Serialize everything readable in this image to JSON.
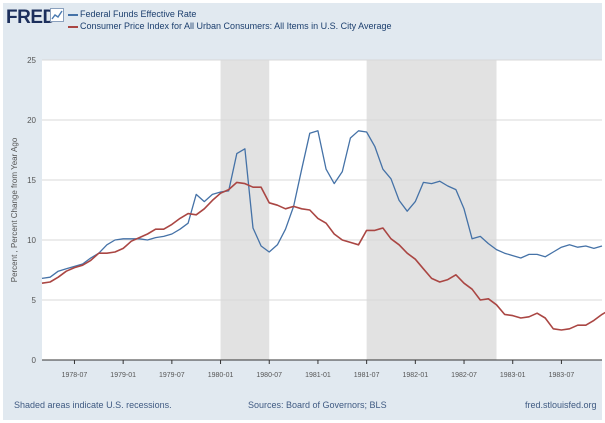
{
  "logo": {
    "text": "FRED",
    "mark_icon": "chart-mark-icon"
  },
  "legend": [
    {
      "label": "Federal Funds Effective Rate",
      "color": "#4572a7"
    },
    {
      "label": "Consumer Price Index for All Urban Consumers: All Items in U.S. City Average",
      "color": "#aa4643"
    }
  ],
  "footer": {
    "recession_note": "Shaded areas indicate U.S. recessions.",
    "sources": "Sources: Board of Governors; BLS",
    "site": "fred.stlouisfed.org"
  },
  "chart_data": {
    "type": "line",
    "title": "",
    "xlabel": "",
    "ylabel": "Percent , Percent Change from Year Ago",
    "ylim": [
      0,
      25
    ],
    "xlim": [
      "1978-03",
      "1983-12"
    ],
    "yticks": [
      0,
      5,
      10,
      15,
      20,
      25
    ],
    "xticks": [
      "1978-07",
      "1979-01",
      "1979-07",
      "1980-01",
      "1980-07",
      "1981-01",
      "1981-07",
      "1982-01",
      "1982-07",
      "1983-01",
      "1983-07"
    ],
    "grid": "horizontal",
    "recessions": [
      [
        "1980-01",
        "1980-07"
      ],
      [
        "1981-07",
        "1982-11"
      ]
    ],
    "series": [
      {
        "name": "Federal Funds Effective Rate",
        "color": "#4572a7",
        "points": [
          [
            "1978-03",
            6.8
          ],
          [
            "1978-04",
            6.9
          ],
          [
            "1978-05",
            7.4
          ],
          [
            "1978-06",
            7.6
          ],
          [
            "1978-07",
            7.8
          ],
          [
            "1978-08",
            8.0
          ],
          [
            "1978-09",
            8.5
          ],
          [
            "1978-10",
            8.9
          ],
          [
            "1978-11",
            9.6
          ],
          [
            "1978-12",
            10.0
          ],
          [
            "1979-01",
            10.1
          ],
          [
            "1979-02",
            10.1
          ],
          [
            "1979-03",
            10.1
          ],
          [
            "1979-04",
            10.0
          ],
          [
            "1979-05",
            10.2
          ],
          [
            "1979-06",
            10.3
          ],
          [
            "1979-07",
            10.5
          ],
          [
            "1979-08",
            10.9
          ],
          [
            "1979-09",
            11.4
          ],
          [
            "1979-10",
            13.8
          ],
          [
            "1979-11",
            13.2
          ],
          [
            "1979-12",
            13.8
          ],
          [
            "1980-01",
            14.0
          ],
          [
            "1980-02",
            14.1
          ],
          [
            "1980-03",
            17.2
          ],
          [
            "1980-04",
            17.6
          ],
          [
            "1980-05",
            11.0
          ],
          [
            "1980-06",
            9.5
          ],
          [
            "1980-07",
            9.0
          ],
          [
            "1980-08",
            9.6
          ],
          [
            "1980-09",
            10.9
          ],
          [
            "1980-10",
            12.8
          ],
          [
            "1980-11",
            15.9
          ],
          [
            "1980-12",
            18.9
          ],
          [
            "1981-01",
            19.1
          ],
          [
            "1981-02",
            15.9
          ],
          [
            "1981-03",
            14.7
          ],
          [
            "1981-04",
            15.7
          ],
          [
            "1981-05",
            18.5
          ],
          [
            "1981-06",
            19.1
          ],
          [
            "1981-07",
            19.0
          ],
          [
            "1981-08",
            17.8
          ],
          [
            "1981-09",
            15.9
          ],
          [
            "1981-10",
            15.1
          ],
          [
            "1981-11",
            13.3
          ],
          [
            "1981-12",
            12.4
          ],
          [
            "1982-01",
            13.2
          ],
          [
            "1982-02",
            14.8
          ],
          [
            "1982-03",
            14.7
          ],
          [
            "1982-04",
            14.9
          ],
          [
            "1982-05",
            14.5
          ],
          [
            "1982-06",
            14.2
          ],
          [
            "1982-07",
            12.6
          ],
          [
            "1982-08",
            10.1
          ],
          [
            "1982-09",
            10.3
          ],
          [
            "1982-10",
            9.7
          ],
          [
            "1982-11",
            9.2
          ],
          [
            "1982-12",
            8.9
          ],
          [
            "1983-01",
            8.7
          ],
          [
            "1983-02",
            8.5
          ],
          [
            "1983-03",
            8.8
          ],
          [
            "1983-04",
            8.8
          ],
          [
            "1983-05",
            8.6
          ],
          [
            "1983-06",
            9.0
          ],
          [
            "1983-07",
            9.4
          ],
          [
            "1983-08",
            9.6
          ],
          [
            "1983-09",
            9.4
          ],
          [
            "1983-10",
            9.5
          ],
          [
            "1983-11",
            9.3
          ],
          [
            "1983-12",
            9.5
          ]
        ]
      },
      {
        "name": "Consumer Price Index for All Urban Consumers: All Items in U.S. City Average",
        "color": "#aa4643",
        "points": [
          [
            "1978-03",
            6.4
          ],
          [
            "1978-04",
            6.5
          ],
          [
            "1978-05",
            6.9
          ],
          [
            "1978-06",
            7.4
          ],
          [
            "1978-07",
            7.7
          ],
          [
            "1978-08",
            7.9
          ],
          [
            "1978-09",
            8.3
          ],
          [
            "1978-10",
            8.9
          ],
          [
            "1978-11",
            8.9
          ],
          [
            "1978-12",
            9.0
          ],
          [
            "1979-01",
            9.3
          ],
          [
            "1979-02",
            9.9
          ],
          [
            "1979-03",
            10.2
          ],
          [
            "1979-04",
            10.5
          ],
          [
            "1979-05",
            10.9
          ],
          [
            "1979-06",
            10.9
          ],
          [
            "1979-07",
            11.3
          ],
          [
            "1979-08",
            11.8
          ],
          [
            "1979-09",
            12.2
          ],
          [
            "1979-10",
            12.1
          ],
          [
            "1979-11",
            12.6
          ],
          [
            "1979-12",
            13.3
          ],
          [
            "1980-01",
            13.9
          ],
          [
            "1980-02",
            14.2
          ],
          [
            "1980-03",
            14.8
          ],
          [
            "1980-04",
            14.7
          ],
          [
            "1980-05",
            14.4
          ],
          [
            "1980-06",
            14.4
          ],
          [
            "1980-07",
            13.1
          ],
          [
            "1980-08",
            12.9
          ],
          [
            "1980-09",
            12.6
          ],
          [
            "1980-10",
            12.8
          ],
          [
            "1980-11",
            12.6
          ],
          [
            "1980-12",
            12.5
          ],
          [
            "1981-01",
            11.8
          ],
          [
            "1981-02",
            11.4
          ],
          [
            "1981-03",
            10.5
          ],
          [
            "1981-04",
            10.0
          ],
          [
            "1981-05",
            9.8
          ],
          [
            "1981-06",
            9.6
          ],
          [
            "1981-07",
            10.8
          ],
          [
            "1981-08",
            10.8
          ],
          [
            "1981-09",
            11.0
          ],
          [
            "1981-10",
            10.1
          ],
          [
            "1981-11",
            9.6
          ],
          [
            "1981-12",
            8.9
          ],
          [
            "1982-01",
            8.4
          ],
          [
            "1982-02",
            7.6
          ],
          [
            "1982-03",
            6.8
          ],
          [
            "1982-04",
            6.5
          ],
          [
            "1982-05",
            6.7
          ],
          [
            "1982-06",
            7.1
          ],
          [
            "1982-07",
            6.4
          ],
          [
            "1982-08",
            5.9
          ],
          [
            "1982-09",
            5.0
          ],
          [
            "1982-10",
            5.1
          ],
          [
            "1982-11",
            4.6
          ],
          [
            "1982-12",
            3.8
          ],
          [
            "1983-01",
            3.7
          ],
          [
            "1983-02",
            3.5
          ],
          [
            "1983-03",
            3.6
          ],
          [
            "1983-04",
            3.9
          ],
          [
            "1983-05",
            3.5
          ],
          [
            "1983-06",
            2.6
          ],
          [
            "1983-07",
            2.5
          ],
          [
            "1983-08",
            2.6
          ],
          [
            "1983-09",
            2.9
          ],
          [
            "1983-10",
            2.9
          ],
          [
            "1983-11",
            3.3
          ],
          [
            "1983-12",
            3.8
          ],
          [
            "1984-01",
            4.2
          ]
        ]
      }
    ]
  }
}
